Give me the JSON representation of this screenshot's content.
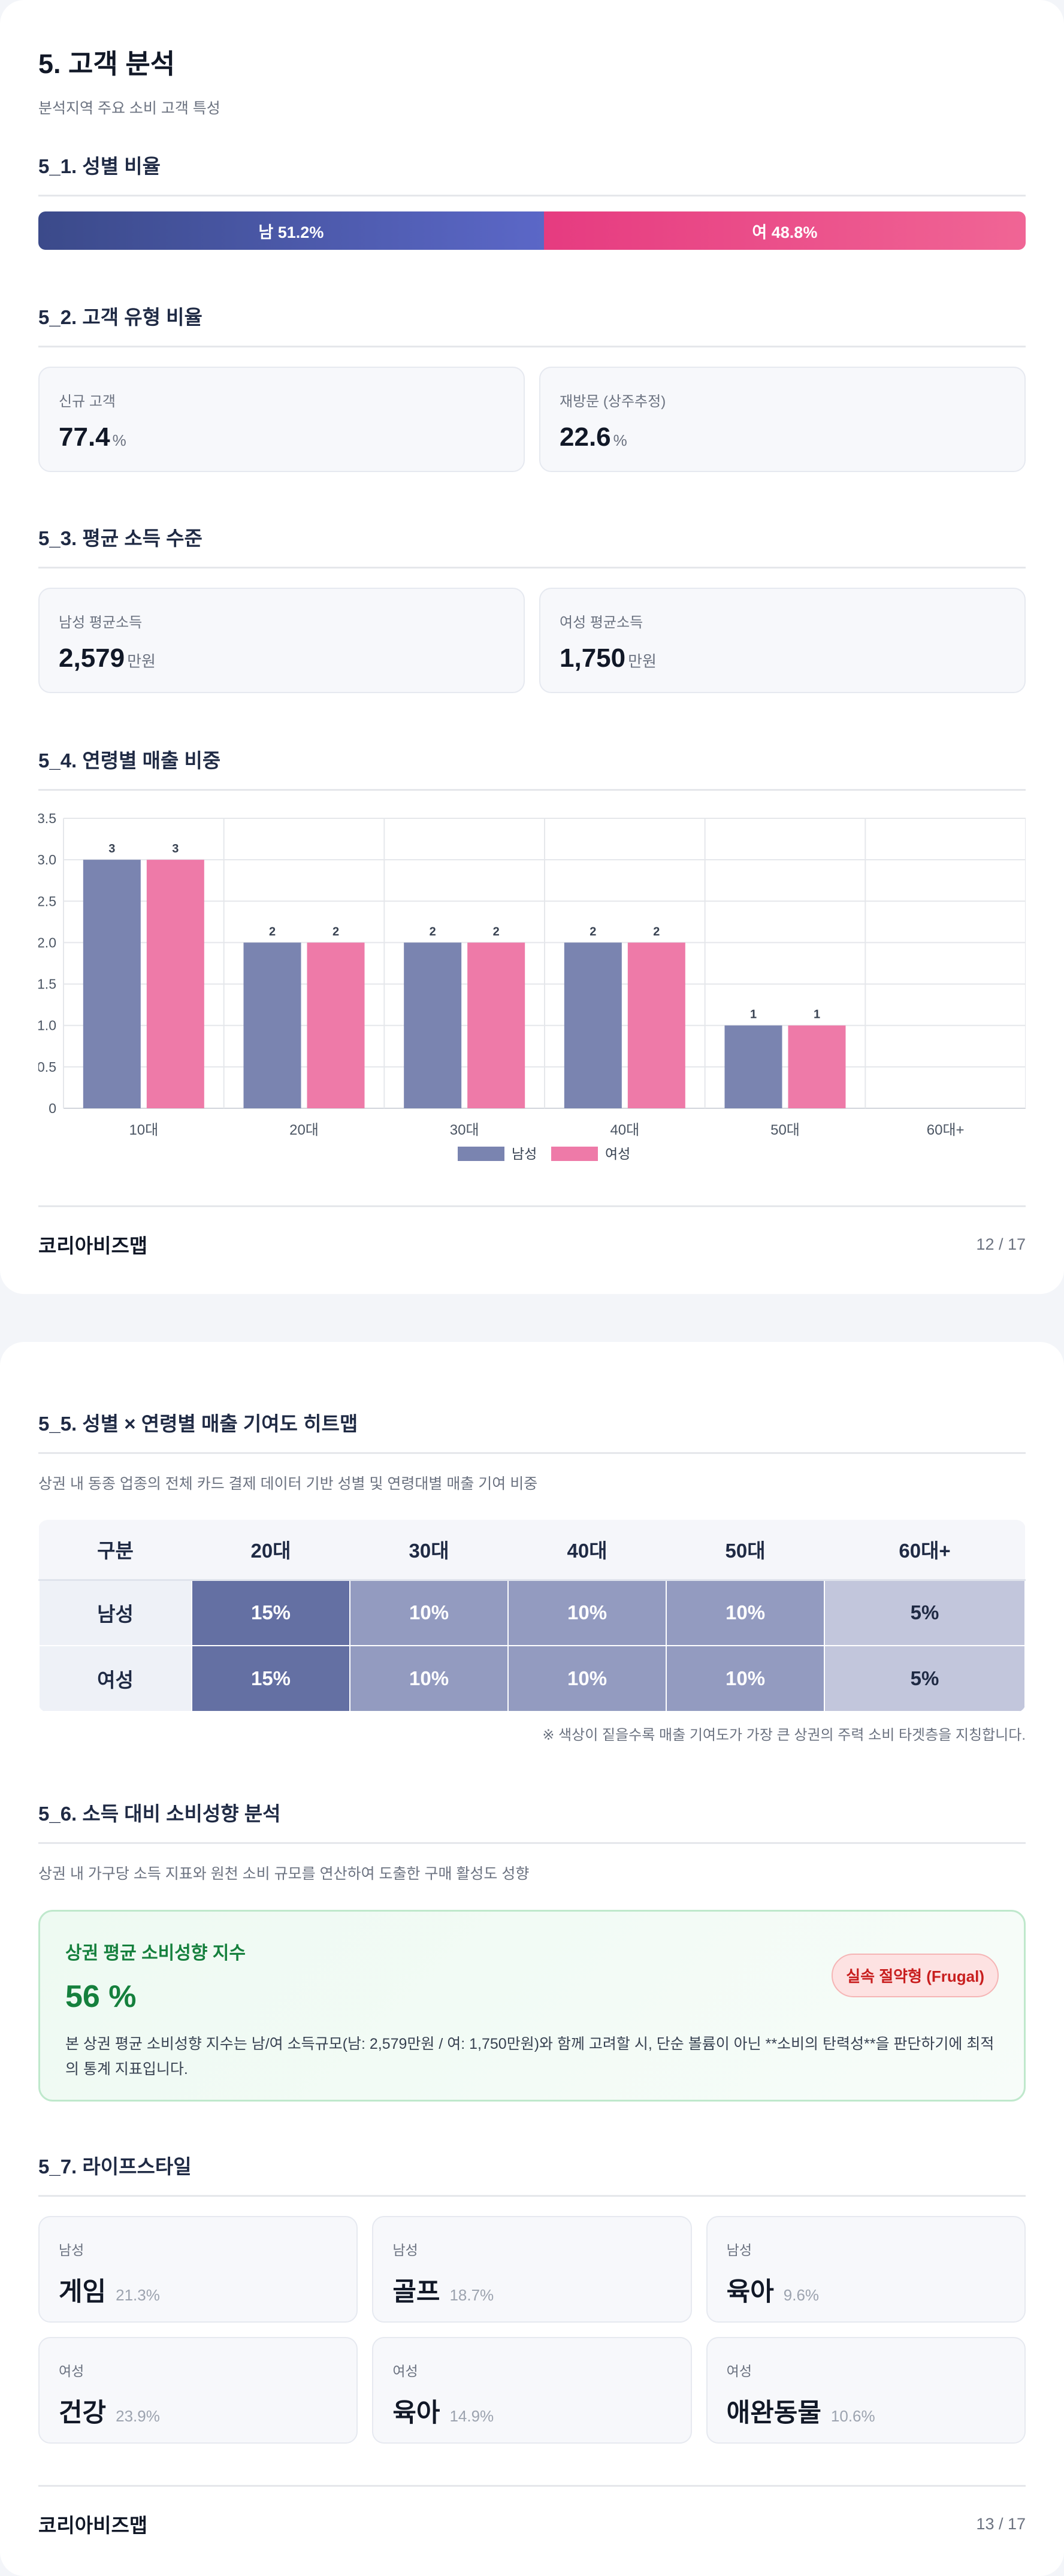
{
  "page1": {
    "section_title": "5. 고객 분석",
    "section_subtitle": "분석지역 주요 소비 고객 특성",
    "gender_ratio": {
      "title": "5_1. 성별 비율",
      "male_label": "남 51.2%",
      "female_label": "여 48.8%",
      "male_share": 51.2,
      "female_share": 48.8,
      "male_color": "#3b4a8a",
      "female_color": "#e63b80"
    },
    "customer_type": {
      "title": "5_2. 고객 유형 비율",
      "cards": [
        {
          "label": "신규 고객",
          "value": "77.4",
          "unit": "%"
        },
        {
          "label": "재방문 (상주추정)",
          "value": "22.6",
          "unit": "%"
        }
      ]
    },
    "income": {
      "title": "5_3. 평균 소득 수준",
      "cards": [
        {
          "label": "남성 평균소득",
          "value": "2,579",
          "unit": "만원"
        },
        {
          "label": "여성 평균소득",
          "value": "1,750",
          "unit": "만원"
        }
      ]
    },
    "age_sales": {
      "title": "5_4. 연령별 매출 비중"
    },
    "footer": {
      "brand": "코리아비즈맵",
      "page": "12 / 17"
    }
  },
  "chart_data": {
    "type": "bar",
    "categories": [
      "10대",
      "20대",
      "30대",
      "40대",
      "50대",
      "60대+"
    ],
    "series": [
      {
        "name": "남성",
        "values": [
          3,
          2,
          2,
          2,
          1,
          0
        ],
        "color": "#7a84b0"
      },
      {
        "name": "여성",
        "values": [
          3,
          2,
          2,
          2,
          1,
          0
        ],
        "color": "#ee7aa8"
      }
    ],
    "ylim": [
      0,
      3.5
    ],
    "yticks": [
      "0",
      "0.5",
      "1.0",
      "1.5",
      "2.0",
      "2.5",
      "3.0",
      "3.5"
    ],
    "grid": true,
    "legend": "bottom-center"
  },
  "page2": {
    "heatmap": {
      "title": "5_5. 성별 × 연령별 매출 기여도 히트맵",
      "subtitle": "상권 내 동종 업종의 전체 카드 결제 데이터 기반 성별 및 연령대별 매출 기여 비중",
      "headers": [
        "구분",
        "20대",
        "30대",
        "40대",
        "50대",
        "60대+"
      ],
      "rows": [
        {
          "label": "남성",
          "cells": [
            "15%",
            "10%",
            "10%",
            "10%",
            "5%"
          ]
        },
        {
          "label": "여성",
          "cells": [
            "15%",
            "10%",
            "10%",
            "10%",
            "5%"
          ]
        }
      ],
      "cell_colors": [
        "#6470a3",
        "#939bc0",
        "#939bc0",
        "#939bc0",
        "#c2c6dc"
      ],
      "note": "※ 색상이 짙을수록 매출 기여도가 가장 큰 상권의 주력 소비 타겟층을 지칭합니다."
    },
    "spending": {
      "title": "5_6. 소득 대비 소비성향 분석",
      "subtitle": "상권 내 가구당 소득 지표와 원천 소비 규모를 연산하여 도출한 구매 활성도 성향",
      "box_title": "상권 평균 소비성향 지수",
      "value": "56 %",
      "badge": "실속 절약형 (Frugal)",
      "description": "본 상권 평균 소비성향 지수는 남/여 소득규모(남: 2,579만원 / 여: 1,750만원)와 함께 고려할 시, 단순 볼륨이 아닌 **소비의 탄력성**을 판단하기에 최적의 통계 지표입니다."
    },
    "lifestyle": {
      "title": "5_7. 라이프스타일",
      "items": [
        {
          "gender": "남성",
          "name": "게임",
          "pct": "21.3%"
        },
        {
          "gender": "남성",
          "name": "골프",
          "pct": "18.7%"
        },
        {
          "gender": "남성",
          "name": "육아",
          "pct": "9.6%"
        },
        {
          "gender": "여성",
          "name": "건강",
          "pct": "23.9%"
        },
        {
          "gender": "여성",
          "name": "육아",
          "pct": "14.9%"
        },
        {
          "gender": "여성",
          "name": "애완동물",
          "pct": "10.6%"
        }
      ]
    },
    "footer": {
      "brand": "코리아비즈맵",
      "page": "13 / 17"
    }
  }
}
